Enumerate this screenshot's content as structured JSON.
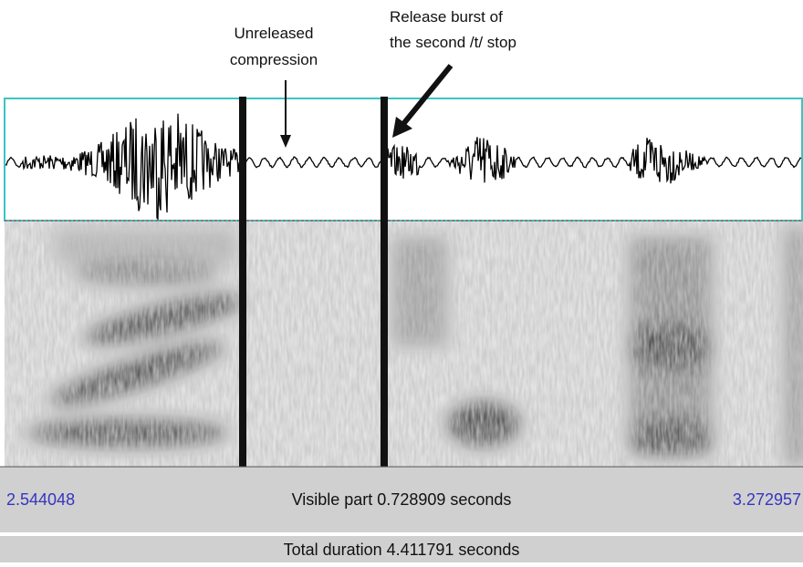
{
  "annotations": [
    {
      "lines": [
        "Unreleased",
        "compression"
      ]
    },
    {
      "lines": [
        "Release burst of",
        "the second /t/ stop"
      ]
    }
  ],
  "window": {
    "start": "2.544048",
    "visible": "Visible part 0.728909 seconds",
    "end": "3.272957",
    "total": "Total duration 4.411791 seconds"
  }
}
